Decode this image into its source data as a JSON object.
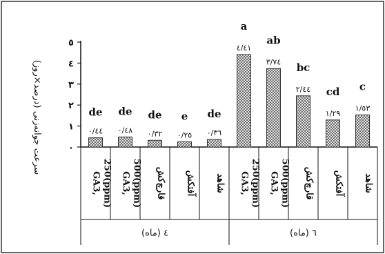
{
  "chart_data": {
    "type": "bar",
    "ylabel": "سرعت جوانه‌زنی (درصد×روز)",
    "ylim": [
      0,
      5
    ],
    "yticks": [
      0,
      1,
      2,
      3,
      4,
      5
    ],
    "ytick_labels": [
      "۰",
      "۱",
      "۲",
      "۳",
      "٤",
      "٥"
    ],
    "legend": "none",
    "grid": false,
    "bar_pattern": "cross-hatch",
    "categories": [
      "GA3, 250(ppm)",
      "GA3, 500(ppm)",
      "قارچ‌کش",
      "آفتکش",
      "شاهد"
    ],
    "category_lines": [
      [
        "GA3,",
        "250(ppm)"
      ],
      [
        "GA3,",
        "500(ppm)"
      ],
      [
        "قارچ‌کش"
      ],
      [
        "آفتکش"
      ],
      [
        "شاهد"
      ]
    ],
    "groups": [
      {
        "name": "٤ (ماه)",
        "values": [
          0.44,
          0.48,
          0.32,
          0.25,
          0.36
        ],
        "value_labels": [
          "۰/٤٤",
          "۰/٤٨",
          "۰/۳۲",
          "۰/۲٥",
          "۰/۳٦"
        ],
        "letters": [
          "de",
          "de",
          "de",
          "e",
          "de"
        ]
      },
      {
        "name": "٦ (ماه)",
        "values": [
          4.41,
          3.74,
          2.44,
          1.29,
          1.53
        ],
        "value_labels": [
          "٤/٤١",
          "۳/۷٤",
          "۲/٤٤",
          "۱/۲۹",
          "۱/٥۳"
        ],
        "letters": [
          "a",
          "ab",
          "bc",
          "cd",
          "c"
        ]
      }
    ]
  }
}
